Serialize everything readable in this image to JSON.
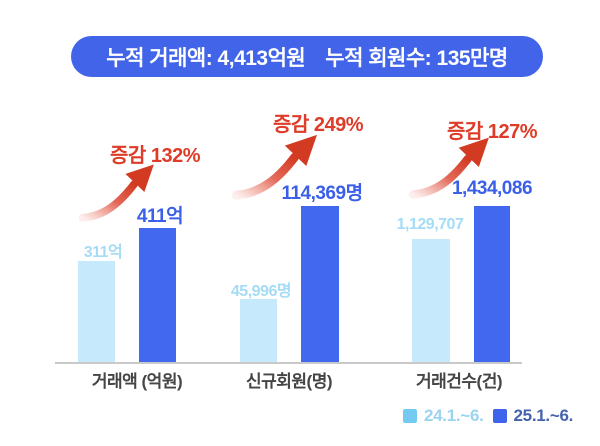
{
  "banner": {
    "cumulative_amount": "누적 거래액: 4,413억원",
    "cumulative_members": "누적 회원수: 135만명"
  },
  "chart_data": {
    "type": "bar",
    "title": "누적 거래액: 4,413억원 누적 회원수: 135만명",
    "categories": [
      "거래액 (억원)",
      "신규회원(명)",
      "거래건수(건)"
    ],
    "series": [
      {
        "name": "24.1.~6.",
        "values": [
          311,
          45996,
          1129707
        ]
      },
      {
        "name": "25.1.~6.",
        "values": [
          411,
          114369,
          1434086
        ]
      }
    ],
    "groups": [
      {
        "category": "거래액 (억원)",
        "growth_label": "증감 132%",
        "prev": {
          "value": 311,
          "label": "311억"
        },
        "curr": {
          "value": 411,
          "label": "411억"
        }
      },
      {
        "category": "신규회원(명)",
        "growth_label": "증감 249%",
        "prev": {
          "value": 45996,
          "label": "45,996명"
        },
        "curr": {
          "value": 114369,
          "label": "114,369명"
        }
      },
      {
        "category": "거래건수(건)",
        "growth_label": "증감 127%",
        "prev": {
          "value": 1129707,
          "label": "1,129,707"
        },
        "curr": {
          "value": 1434086,
          "label": "1,434,086"
        }
      }
    ],
    "legend": [
      {
        "label": "24.1.~6."
      },
      {
        "label": "25.1.~6."
      }
    ],
    "legend_position": "bottom-right",
    "grid": false
  },
  "colors": {
    "banner_bg": "#4164E8",
    "bar_light": "#C6E9FB",
    "bar_dark": "#4168EF",
    "text_light_value": "#A4DCF6",
    "text_dark_value": "#3B5FE8",
    "growth_red": "#DE3B28",
    "arrow_red": "#D23A22",
    "axis_line": "#C9C9C9",
    "category_text": "#454545",
    "legend_light_swatch": "#75CAF2",
    "legend_light_text": "#9BD3F0",
    "legend_dark_swatch": "#3E63ED",
    "legend_dark_text": "#4463AD"
  }
}
